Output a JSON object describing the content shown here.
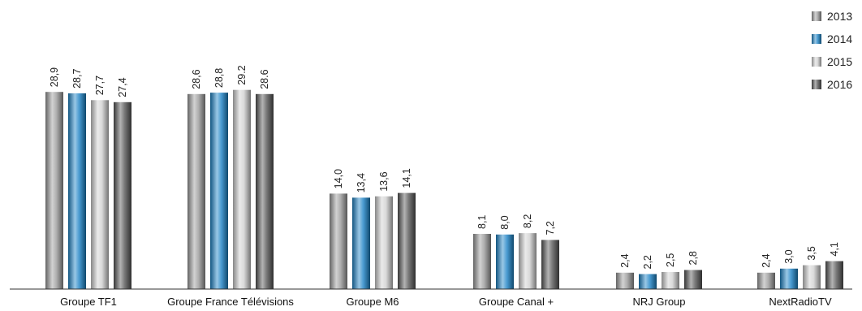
{
  "chart_data": {
    "type": "bar",
    "title": "",
    "xlabel": "",
    "ylabel": "",
    "ylim": [
      0,
      32
    ],
    "grid": false,
    "legend_placement": "top-right",
    "categories": [
      "Groupe TF1",
      "Groupe France Télévisions",
      "Groupe M6",
      "Groupe Canal +",
      "NRJ Group",
      "NextRadioTV"
    ],
    "series": [
      {
        "name": "2013",
        "color": "#9a9a9a",
        "values": [
          28.9,
          28.6,
          14.0,
          8.1,
          2.4,
          2.4
        ],
        "labels": [
          "28,9",
          "28,6",
          "14,0",
          "8,1",
          "2,4",
          "2,4"
        ]
      },
      {
        "name": "2014",
        "color": "#1c82c6",
        "values": [
          28.7,
          28.8,
          13.4,
          8.0,
          2.2,
          3.0
        ],
        "labels": [
          "28,7",
          "28,8",
          "13,4",
          "8,0",
          "2,2",
          "3,0"
        ]
      },
      {
        "name": "2015",
        "color": "#d0d0d0",
        "values": [
          27.7,
          29.2,
          13.6,
          8.2,
          2.5,
          3.5
        ],
        "labels": [
          "27,7",
          "29.2",
          "13,6",
          "8,2",
          "2,5",
          "3,5"
        ]
      },
      {
        "name": "2016",
        "color": "#555555",
        "values": [
          27.4,
          28.6,
          14.1,
          7.2,
          2.8,
          4.1
        ],
        "labels": [
          "27,4",
          "28.6",
          "14,1",
          "7,2",
          "2,8",
          "4,1"
        ]
      }
    ]
  }
}
